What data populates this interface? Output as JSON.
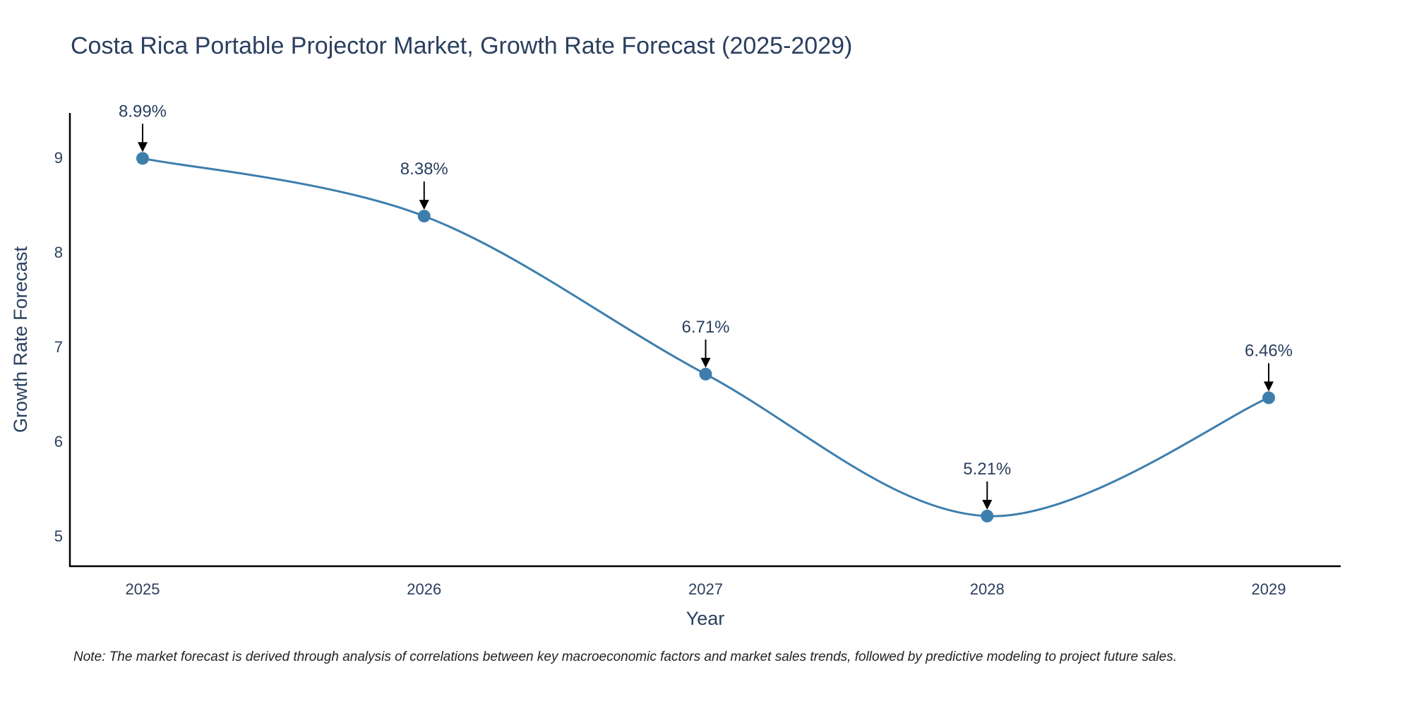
{
  "chart_data": {
    "type": "line",
    "title": "Costa Rica Portable Projector Market, Growth Rate Forecast (2025-2029)",
    "xlabel": "Year",
    "ylabel": "Growth Rate Forecast",
    "categories": [
      "2025",
      "2026",
      "2027",
      "2028",
      "2029"
    ],
    "series": [
      {
        "name": "Growth Rate Forecast",
        "values": [
          8.99,
          8.38,
          6.71,
          5.21,
          6.46
        ],
        "color": "#3d7ead"
      }
    ],
    "annotations": [
      "8.99%",
      "8.38%",
      "6.71%",
      "5.21%",
      "6.46%"
    ],
    "yticks": [
      5,
      6,
      7,
      8,
      9
    ],
    "ylim": [
      4.68,
      9.47
    ],
    "grid": false,
    "line_shape": "spline"
  },
  "note": "Note: The market forecast is derived through analysis of correlations between key macroeconomic factors and market sales trends, followed by predictive modeling to project future sales."
}
